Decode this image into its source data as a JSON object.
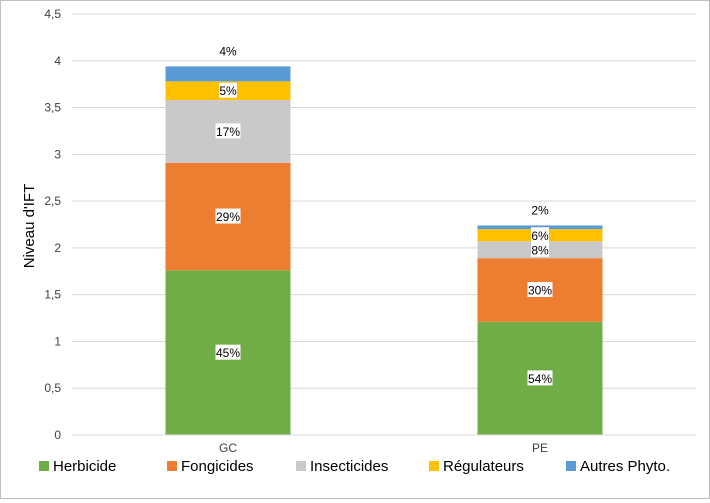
{
  "chart_data": {
    "type": "bar",
    "stacked": true,
    "categories": [
      "GC",
      "PE"
    ],
    "series": [
      {
        "name": "Herbicide",
        "color": "#70ad47",
        "values": [
          1.76,
          1.21
        ],
        "labels": [
          "45%",
          "54%"
        ]
      },
      {
        "name": "Fongicides",
        "color": "#ed7d31",
        "values": [
          1.15,
          0.68
        ],
        "labels": [
          "29%",
          "30%"
        ]
      },
      {
        "name": "Insecticides",
        "color": "#c9c9c9",
        "values": [
          0.67,
          0.18
        ],
        "labels": [
          "17%",
          "8%"
        ]
      },
      {
        "name": "Régulateurs",
        "color": "#ffc000",
        "values": [
          0.2,
          0.13
        ],
        "labels": [
          "5%",
          "6%"
        ]
      },
      {
        "name": "Autres Phyto.",
        "color": "#5b9bd5",
        "values": [
          0.16,
          0.04
        ],
        "labels": [
          "4%",
          "2%"
        ]
      }
    ],
    "ylabel": "Niveau d'IFT",
    "xlabel": "",
    "title": "",
    "ylim": [
      0,
      4.5
    ],
    "yticks": [
      0,
      0.5,
      1,
      1.5,
      2,
      2.5,
      3,
      3.5,
      4,
      4.5
    ],
    "ytick_labels": [
      "0",
      "0,5",
      "1",
      "1,5",
      "2",
      "2,5",
      "3",
      "3,5",
      "4",
      "4,5"
    ],
    "grid": true,
    "legend_position": "bottom"
  }
}
